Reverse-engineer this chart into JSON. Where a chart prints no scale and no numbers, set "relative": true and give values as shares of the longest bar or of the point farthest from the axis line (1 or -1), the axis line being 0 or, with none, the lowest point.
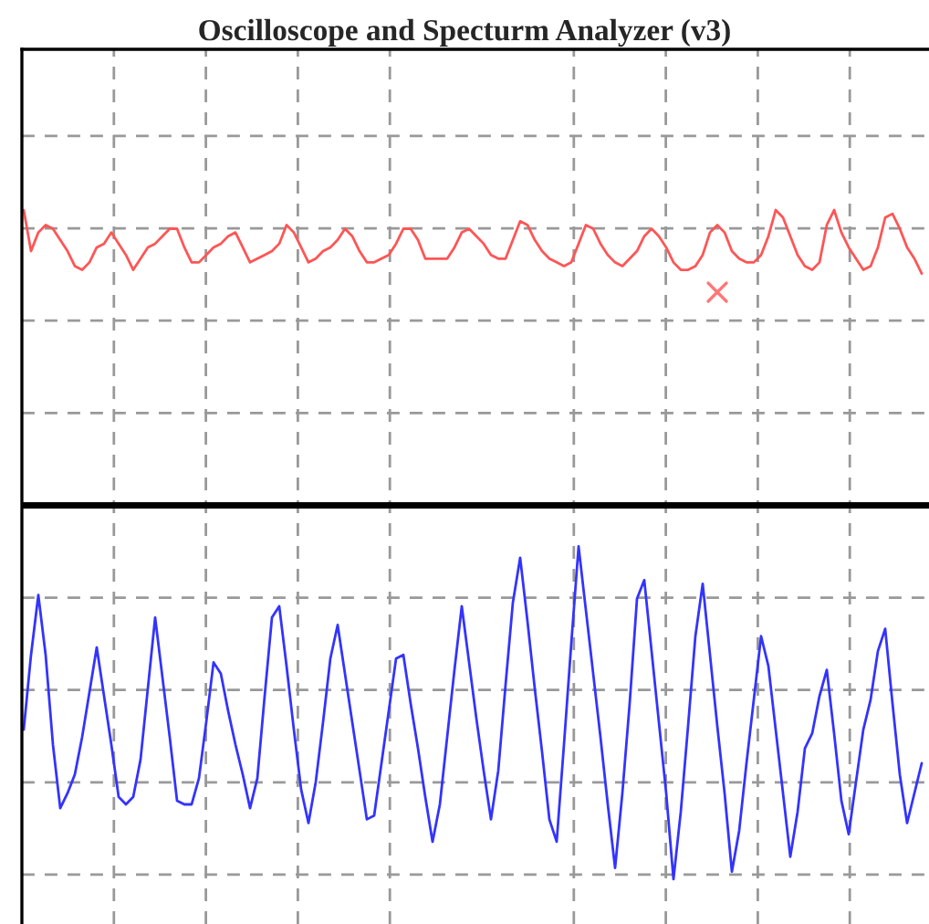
{
  "chart_data": {
    "type": "line",
    "title": "Oscilloscope and Specturm Analyzer (v3)",
    "relative": true,
    "grid": true,
    "categories": [
      null,
      null,
      null,
      null,
      null,
      null,
      null,
      null,
      null,
      null,
      null,
      null,
      null,
      null,
      null,
      null,
      null,
      null,
      null,
      null,
      null,
      null,
      null,
      null,
      null,
      null,
      null,
      null,
      null,
      null,
      null,
      null,
      null,
      null,
      null,
      null,
      null,
      null,
      null,
      null,
      null,
      null,
      null,
      null,
      null,
      null,
      null,
      null,
      null,
      null,
      null,
      null,
      null,
      null,
      null,
      null,
      null,
      null,
      null,
      null,
      null,
      null,
      null,
      null,
      null,
      null,
      null,
      null,
      null,
      null,
      null,
      null,
      null,
      null,
      null,
      null,
      null,
      null,
      null,
      null,
      null,
      null,
      null,
      null,
      null,
      null,
      null,
      null,
      null,
      null,
      null,
      null,
      null,
      null,
      null,
      null,
      null,
      null,
      null,
      null,
      null,
      null,
      null,
      null,
      null,
      null,
      null,
      null,
      null,
      null,
      null,
      null,
      null,
      null,
      null,
      null,
      null,
      null,
      null,
      null,
      null,
      null,
      null,
      null
    ],
    "series": [
      {
        "color": "#ff5555",
        "values": [
          0.79,
          0.68,
          0.73,
          0.75,
          0.74,
          0.71,
          0.68,
          0.64,
          0.63,
          0.65,
          0.69,
          0.7,
          0.73,
          0.7,
          0.67,
          0.63,
          0.66,
          0.69,
          0.7,
          0.72,
          0.74,
          0.74,
          0.69,
          0.65,
          0.65,
          0.67,
          0.69,
          0.7,
          0.72,
          0.73,
          0.69,
          0.65,
          0.66,
          0.67,
          0.68,
          0.7,
          0.75,
          0.73,
          0.69,
          0.65,
          0.66,
          0.68,
          0.69,
          0.71,
          0.74,
          0.72,
          0.68,
          0.65,
          0.65,
          0.66,
          0.67,
          0.7,
          0.74,
          0.74,
          0.71,
          0.66,
          0.66,
          0.66,
          0.66,
          0.69,
          0.73,
          0.74,
          0.72,
          0.7,
          0.67,
          0.66,
          0.66,
          0.71,
          0.76,
          0.75,
          0.71,
          0.68,
          0.66,
          0.65,
          0.64,
          0.65,
          0.7,
          0.75,
          0.74,
          0.7,
          0.67,
          0.65,
          0.64,
          0.66,
          0.68,
          0.72,
          0.74,
          0.72,
          0.69,
          0.65,
          0.63,
          0.63,
          0.64,
          0.67,
          0.73,
          0.75,
          0.73,
          0.68,
          0.66,
          0.65,
          0.65,
          0.67,
          0.72,
          0.79,
          0.77,
          0.72,
          0.67,
          0.64,
          0.63,
          0.65,
          0.75,
          0.79,
          0.73,
          0.69,
          0.66,
          0.63,
          0.64,
          0.69,
          0.77,
          0.78,
          0.74,
          0.69,
          0.66,
          0.62
        ]
      },
      {
        "color": "#3333ff",
        "values": [
          -0.6,
          -0.4,
          -0.24,
          -0.4,
          -0.64,
          -0.81,
          -0.77,
          -0.72,
          -0.62,
          -0.5,
          -0.38,
          -0.51,
          -0.64,
          -0.78,
          -0.8,
          -0.78,
          -0.68,
          -0.49,
          -0.3,
          -0.46,
          -0.62,
          -0.79,
          -0.8,
          -0.8,
          -0.73,
          -0.58,
          -0.42,
          -0.45,
          -0.55,
          -0.64,
          -0.72,
          -0.81,
          -0.73,
          -0.51,
          -0.3,
          -0.27,
          -0.43,
          -0.6,
          -0.76,
          -0.85,
          -0.74,
          -0.58,
          -0.41,
          -0.32,
          -0.45,
          -0.58,
          -0.71,
          -0.84,
          -0.83,
          -0.69,
          -0.55,
          -0.41,
          -0.4,
          -0.53,
          -0.65,
          -0.78,
          -0.9,
          -0.8,
          -0.62,
          -0.44,
          -0.27,
          -0.42,
          -0.57,
          -0.71,
          -0.84,
          -0.71,
          -0.48,
          -0.26,
          -0.14,
          -0.31,
          -0.49,
          -0.66,
          -0.84,
          -0.9,
          -0.64,
          -0.37,
          -0.11,
          -0.28,
          -0.45,
          -0.62,
          -0.8,
          -0.97,
          -0.77,
          -0.53,
          -0.25,
          -0.2,
          -0.39,
          -0.58,
          -0.77,
          -1.0,
          -0.82,
          -0.59,
          -0.35,
          -0.21,
          -0.4,
          -0.59,
          -0.77,
          -0.98,
          -0.87,
          -0.69,
          -0.52,
          -0.35,
          -0.43,
          -0.6,
          -0.77,
          -0.94,
          -0.82,
          -0.65,
          -0.61,
          -0.51,
          -0.44,
          -0.61,
          -0.79,
          -0.88,
          -0.74,
          -0.6,
          -0.52,
          -0.39,
          -0.33,
          -0.53,
          -0.72,
          -0.85,
          -0.77,
          -0.69
        ]
      }
    ]
  }
}
